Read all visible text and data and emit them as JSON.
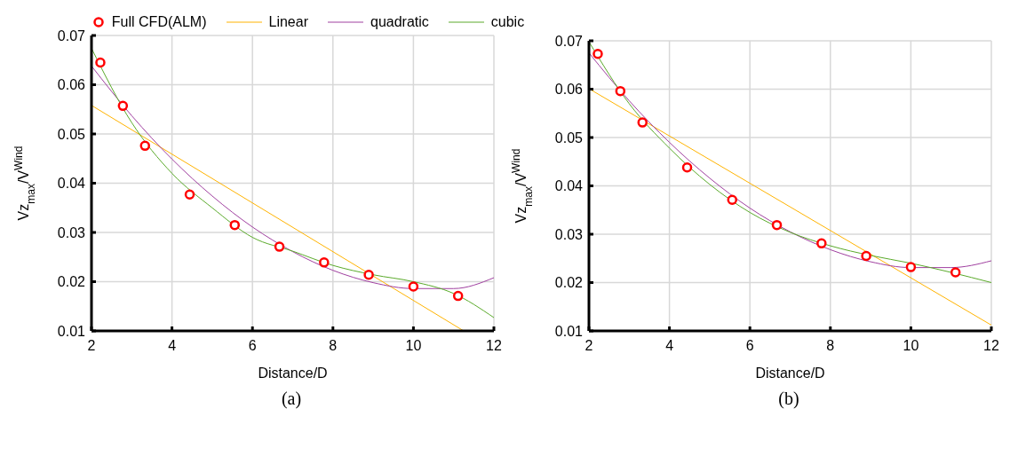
{
  "chart_data": [
    {
      "type": "line",
      "xlabel": "Distance/D",
      "ylabel": "Vz$_{max}$/V$^{Wind}$",
      "xlim": [
        2,
        12
      ],
      "xticks": [
        2,
        4,
        6,
        8,
        10,
        12
      ],
      "ylim": [
        0.01,
        0.07
      ],
      "yticks": [
        0.01,
        0.02,
        0.03,
        0.04,
        0.05,
        0.06,
        0.07
      ],
      "grid": true,
      "legend": "top",
      "annotations": [
        "(a)"
      ],
      "series": [
        {
          "name": "Full CFD(ALM)",
          "type": "scatter",
          "marker": "circle",
          "color": "#ff0000",
          "x": [
            2.22,
            2.78,
            3.33,
            4.44,
            5.56,
            6.67,
            7.78,
            8.89,
            10,
            11.11
          ],
          "values": [
            0.0645,
            0.0557,
            0.0476,
            0.0377,
            0.0315,
            0.0271,
            0.0239,
            0.0214,
            0.019,
            0.0171
          ]
        },
        {
          "name": "Linear",
          "color": "#ffb300",
          "x": [
            2,
            11.25
          ],
          "values": [
            0.0558,
            0.01
          ]
        },
        {
          "name": "quadratic",
          "color": "#a040a0",
          "x": [
            2,
            3,
            4,
            5,
            6,
            7,
            8,
            9,
            10,
            11,
            12
          ],
          "values": [
            0.0638,
            0.0537,
            0.0449,
            0.0374,
            0.0311,
            0.0261,
            0.0223,
            0.0198,
            0.0186,
            0.0186,
            0.0208
          ]
        },
        {
          "name": "cubic",
          "color": "#5aaa2a",
          "x": [
            2,
            3,
            4,
            5,
            6,
            7,
            8,
            9,
            10,
            11,
            12
          ],
          "values": [
            0.0674,
            0.0523,
            0.042,
            0.035,
            0.029,
            0.0262,
            0.0233,
            0.0214,
            0.02,
            0.0176,
            0.0127
          ]
        }
      ]
    },
    {
      "type": "line",
      "xlabel": "Distance/D",
      "ylabel": "Vz$_{max}$/V$^{Wind}$",
      "xlim": [
        2,
        12
      ],
      "xticks": [
        2,
        4,
        6,
        8,
        10,
        12
      ],
      "ylim": [
        0.01,
        0.07
      ],
      "yticks": [
        0.01,
        0.02,
        0.03,
        0.04,
        0.05,
        0.06,
        0.07
      ],
      "grid": true,
      "annotations": [
        "(b)"
      ],
      "series": [
        {
          "type": "scatter",
          "marker": "circle",
          "color": "#ff0000",
          "x": [
            2.22,
            2.78,
            3.33,
            4.44,
            5.56,
            6.67,
            7.78,
            8.89,
            10,
            11.11
          ],
          "values": [
            0.0673,
            0.0596,
            0.0531,
            0.0438,
            0.0371,
            0.0319,
            0.0281,
            0.0255,
            0.0232,
            0.0221
          ]
        },
        {
          "color": "#ffb300",
          "x": [
            2,
            12
          ],
          "values": [
            0.0601,
            0.0112
          ]
        },
        {
          "color": "#a040a0",
          "x": [
            2,
            3,
            4,
            5,
            6,
            7,
            8,
            9,
            10,
            11,
            12
          ],
          "values": [
            0.0675,
            0.0576,
            0.049,
            0.0416,
            0.0354,
            0.0305,
            0.0268,
            0.0243,
            0.0231,
            0.0231,
            0.0245
          ]
        },
        {
          "color": "#5aaa2a",
          "x": [
            2,
            3,
            4,
            5,
            6,
            7,
            8,
            9,
            10,
            11,
            12
          ],
          "values": [
            0.0698,
            0.057,
            0.0478,
            0.0403,
            0.0345,
            0.0304,
            0.0276,
            0.0256,
            0.024,
            0.0221,
            0.02
          ]
        }
      ]
    }
  ]
}
